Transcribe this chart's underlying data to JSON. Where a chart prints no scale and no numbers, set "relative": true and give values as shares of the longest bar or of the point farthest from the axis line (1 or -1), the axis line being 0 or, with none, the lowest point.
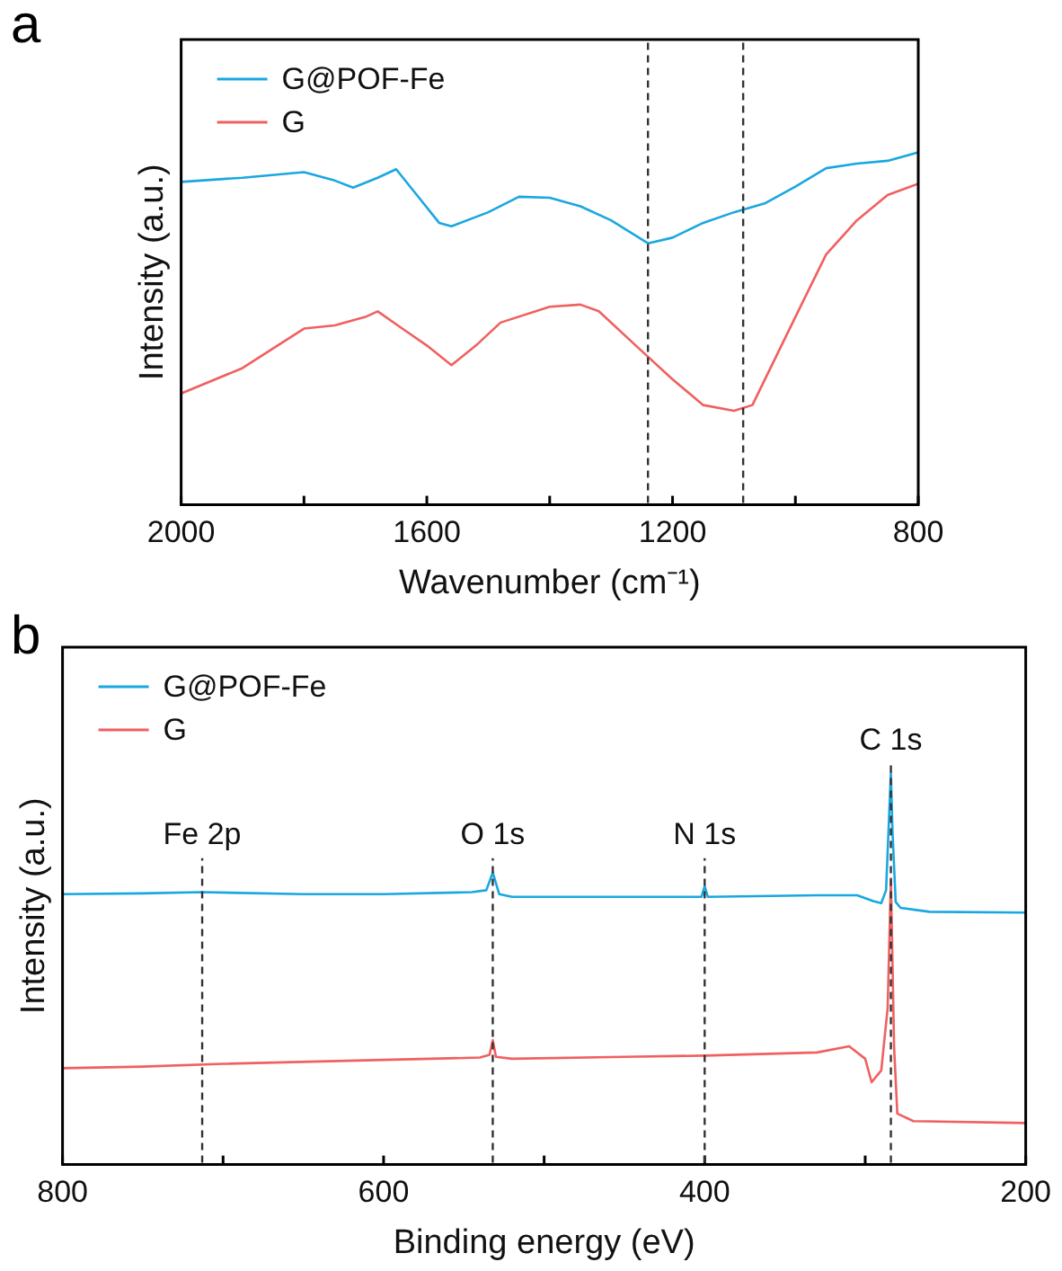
{
  "chart_data": [
    {
      "type": "line",
      "title": "a",
      "xlabel": "Wavenumber (cm⁻¹)",
      "ylabel": "Intensity (a.u.)",
      "relative": true,
      "legend": "top left",
      "xlim": [
        2000,
        800
      ],
      "xticks": [
        2000,
        {
          "value": 1800,
          "label": null
        },
        1600,
        {
          "value": 1400,
          "label": null
        },
        1200,
        {
          "value": 1000,
          "label": null
        },
        800
      ],
      "x": [
        2000,
        1900,
        1800,
        1750,
        1720,
        1680,
        1650,
        1620,
        1580,
        1560,
        1500,
        1450,
        1400,
        1350,
        1300,
        1240,
        1200,
        1150,
        1100,
        1050,
        1000,
        950,
        900,
        850,
        800
      ],
      "series": [
        {
          "name": "G@POF-Fe",
          "color": "#1aa7e0",
          "values": [
            0.916,
            0.928,
            0.944,
            0.92,
            0.9,
            0.928,
            0.952,
            0.887,
            0.8,
            0.79,
            0.83,
            0.874,
            0.871,
            0.847,
            0.807,
            0.742,
            0.758,
            0.8,
            0.83,
            0.855,
            0.903,
            0.955,
            0.968,
            0.976,
            1.0
          ]
        },
        {
          "name": "G",
          "color": "#f06060",
          "x": [
            2000,
            1900,
            1800,
            1750,
            1700,
            1680,
            1640,
            1600,
            1560,
            1520,
            1480,
            1400,
            1350,
            1320,
            1250,
            1200,
            1150,
            1100,
            1070,
            1000,
            950,
            900,
            850,
            800
          ],
          "values": [
            0.316,
            0.388,
            0.5,
            0.509,
            0.533,
            0.549,
            0.5,
            0.452,
            0.396,
            0.452,
            0.517,
            0.562,
            0.568,
            0.549,
            0.436,
            0.356,
            0.283,
            0.267,
            0.283,
            0.533,
            0.71,
            0.807,
            0.879,
            0.911
          ]
        }
      ],
      "ref_lines": [
        {
          "axis": "x",
          "value": 1240,
          "color": "#333333",
          "line_style": "dashed"
        },
        {
          "axis": "x",
          "value": 1085,
          "color": "#333333",
          "line_style": "dashed"
        }
      ]
    },
    {
      "type": "line",
      "title": "b",
      "xlabel": "Binding energy (eV)",
      "ylabel": "Intensity (a.u.)",
      "relative": true,
      "legend": "top left",
      "xlim": [
        800,
        200
      ],
      "xticks": [
        800,
        {
          "value": 700,
          "label": null
        },
        600,
        {
          "value": 500,
          "label": null
        },
        400,
        {
          "value": 300,
          "label": null
        },
        200
      ],
      "x": [
        800,
        750,
        713,
        650,
        600,
        545,
        536,
        532,
        528,
        520,
        450,
        402,
        400,
        398,
        330,
        305,
        295,
        290,
        287,
        285,
        284,
        283,
        281,
        278,
        260,
        200
      ],
      "series": [
        {
          "name": "G@POF-Fe",
          "color": "#1aa7e0",
          "values": [
            0.69,
            0.692,
            0.695,
            0.69,
            0.69,
            0.695,
            0.7,
            0.745,
            0.69,
            0.683,
            0.683,
            0.683,
            0.71,
            0.683,
            0.687,
            0.687,
            0.672,
            0.667,
            0.7,
            0.9,
            1.0,
            0.85,
            0.67,
            0.655,
            0.645,
            0.643
          ]
        },
        {
          "name": "G",
          "color": "#f06060",
          "x": [
            800,
            750,
            700,
            600,
            540,
            534,
            532,
            530,
            520,
            450,
            400,
            330,
            310,
            300,
            296,
            290,
            286,
            284,
            282,
            280,
            270,
            200
          ],
          "values": [
            0.246,
            0.25,
            0.257,
            0.267,
            0.273,
            0.28,
            0.317,
            0.275,
            0.27,
            0.275,
            0.278,
            0.286,
            0.302,
            0.27,
            0.21,
            0.24,
            0.4,
            0.73,
            0.3,
            0.13,
            0.111,
            0.106
          ]
        }
      ],
      "ref_lines": [
        {
          "axis": "x",
          "value": 713,
          "color": "#333333",
          "line_style": "dashed"
        },
        {
          "axis": "x",
          "value": 532,
          "color": "#333333",
          "line_style": "dashed"
        },
        {
          "axis": "x",
          "value": 400,
          "color": "#333333",
          "line_style": "dashed"
        },
        {
          "axis": "x",
          "value": 284,
          "color": "#333333",
          "line_style": "dashed"
        }
      ],
      "annotations": [
        {
          "text": "Fe 2p",
          "x": 713,
          "y": 0.8
        },
        {
          "text": "O 1s",
          "x": 532,
          "y": 0.8
        },
        {
          "text": "N 1s",
          "x": 400,
          "y": 0.8
        },
        {
          "text": "C 1s",
          "x": 284,
          "y": 1.04
        }
      ]
    }
  ]
}
